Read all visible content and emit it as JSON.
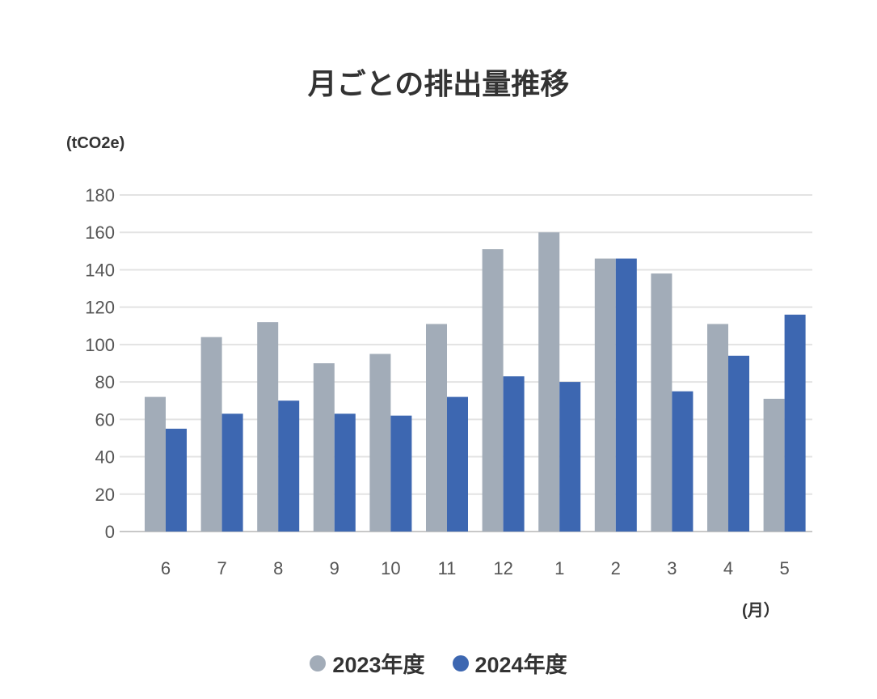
{
  "chart_data": {
    "type": "bar",
    "title": "月ごとの排出量推移",
    "ylabel": "(tCO2e)",
    "xlabel": "(月）",
    "ylim": [
      0,
      180
    ],
    "yticks": [
      0,
      20,
      40,
      60,
      80,
      100,
      120,
      140,
      160,
      180
    ],
    "grid": true,
    "legend_position": "bottom",
    "categories": [
      "6",
      "7",
      "8",
      "9",
      "10",
      "11",
      "12",
      "1",
      "2",
      "3",
      "4",
      "5"
    ],
    "series": [
      {
        "name": "2023年度",
        "color": "#a2acb8",
        "values": [
          72,
          104,
          112,
          90,
          95,
          111,
          151,
          160,
          146,
          138,
          111,
          71
        ]
      },
      {
        "name": "2024年度",
        "color": "#3d67b1",
        "values": [
          55,
          63,
          70,
          63,
          62,
          72,
          83,
          80,
          146,
          75,
          94,
          116
        ]
      }
    ]
  }
}
